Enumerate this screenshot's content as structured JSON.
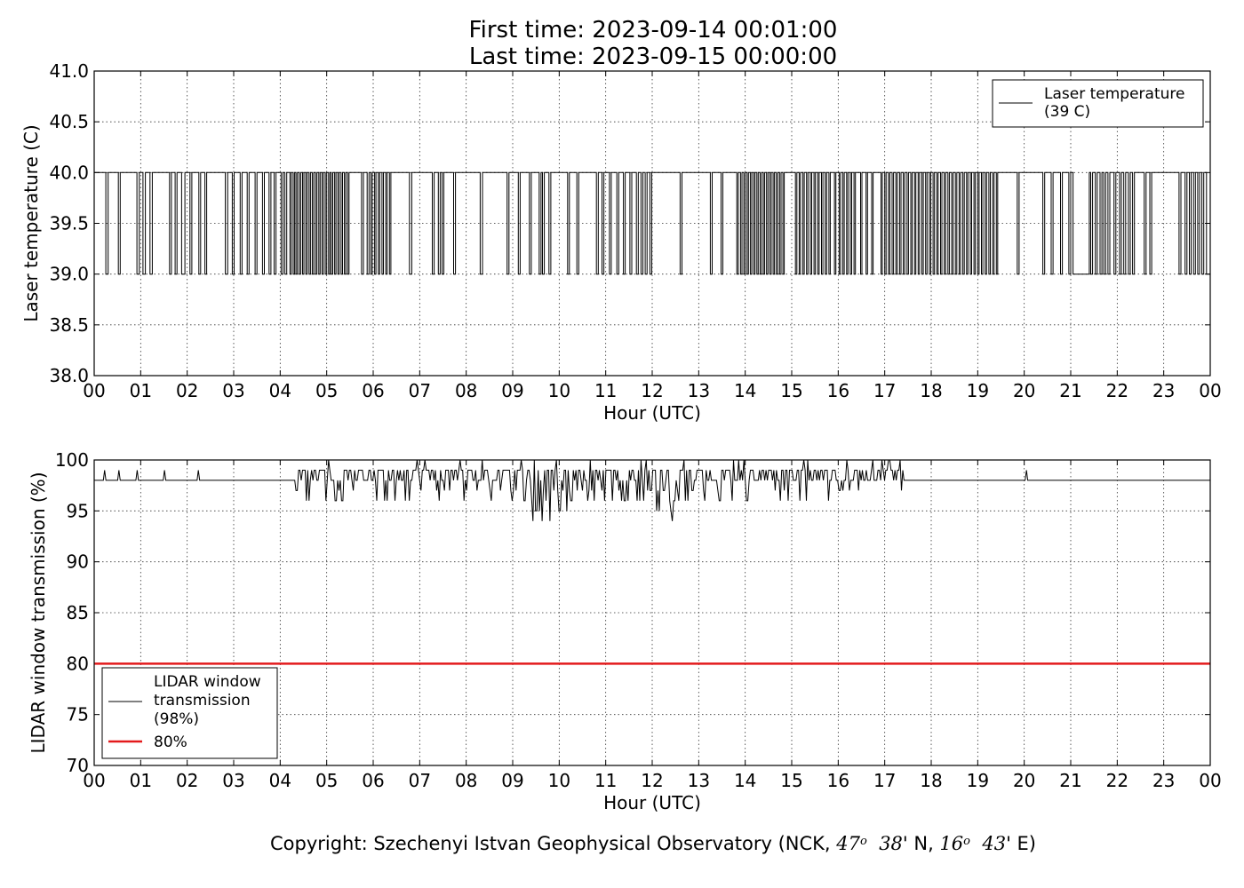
{
  "figure": {
    "title_line_1": "First time: 2023-09-14 00:01:00",
    "title_line_2": "Last time: 2023-09-15 00:00:00",
    "copyright": {
      "prefix": "Copyright: Szechenyi Istvan Geophysical Observatory (NCK, ",
      "lat_deg": "47",
      "deg_symbol": "o",
      "lat_min": "38",
      "lat_suffix": "' N, ",
      "lon_deg": "16",
      "lon_min": "43",
      "lon_suffix": "' E)"
    }
  },
  "chart_data": [
    {
      "type": "line",
      "ylabel": "Laser temperature (C)",
      "xlabel": "Hour (UTC)",
      "xlim": [
        0,
        24
      ],
      "ylim": [
        38.0,
        41.0
      ],
      "x_tick_labels": [
        "00",
        "01",
        "02",
        "03",
        "04",
        "05",
        "06",
        "07",
        "08",
        "09",
        "10",
        "11",
        "12",
        "13",
        "14",
        "15",
        "16",
        "17",
        "18",
        "19",
        "20",
        "21",
        "22",
        "23",
        "00"
      ],
      "y_tick_labels": [
        "38.0",
        "38.5",
        "39.0",
        "39.5",
        "40.0",
        "40.5",
        "41.0"
      ],
      "y_ticks": [
        38.0,
        38.5,
        39.0,
        39.5,
        40.0,
        40.5,
        41.0
      ],
      "grid": true,
      "legend_position": "top-right",
      "series": [
        {
          "name": "Laser temperature\n(39 C)",
          "legend_lines": [
            "Laser temperature",
            "(39 C)"
          ],
          "color": "#000000",
          "baseline": 40.0,
          "low": 39.0,
          "drop_intervals_hours": [
            [
              0.25,
              0.3
            ],
            [
              0.52,
              0.56
            ],
            [
              0.92,
              0.97
            ],
            [
              1.05,
              1.1
            ],
            [
              1.2,
              1.25
            ],
            [
              1.62,
              1.66
            ],
            [
              1.74,
              1.78
            ],
            [
              1.88,
              1.95
            ],
            [
              2.06,
              2.1
            ],
            [
              2.25,
              2.29
            ],
            [
              2.38,
              2.42
            ],
            [
              2.82,
              2.87
            ],
            [
              2.97,
              3.01
            ],
            [
              3.14,
              3.18
            ],
            [
              3.29,
              3.33
            ],
            [
              3.46,
              3.5
            ],
            [
              3.62,
              3.66
            ],
            [
              3.76,
              3.8
            ],
            [
              3.87,
              3.91
            ],
            [
              4.02,
              4.06
            ],
            [
              4.1,
              4.14
            ],
            [
              4.21,
              4.24
            ],
            [
              4.28,
              4.31
            ],
            [
              4.34,
              4.37
            ],
            [
              4.41,
              4.44
            ],
            [
              4.48,
              4.51
            ],
            [
              4.55,
              4.58
            ],
            [
              4.62,
              4.65
            ],
            [
              4.69,
              4.72
            ],
            [
              4.76,
              4.79
            ],
            [
              4.83,
              4.86
            ],
            [
              4.9,
              4.93
            ],
            [
              4.97,
              5.0
            ],
            [
              5.04,
              5.07
            ],
            [
              5.1,
              5.13
            ],
            [
              5.17,
              5.2
            ],
            [
              5.24,
              5.27
            ],
            [
              5.31,
              5.34
            ],
            [
              5.38,
              5.41
            ],
            [
              5.45,
              5.48
            ],
            [
              5.75,
              5.79
            ],
            [
              5.87,
              5.91
            ],
            [
              5.95,
              5.98
            ],
            [
              6.03,
              6.06
            ],
            [
              6.11,
              6.14
            ],
            [
              6.19,
              6.22
            ],
            [
              6.27,
              6.3
            ],
            [
              6.35,
              6.38
            ],
            [
              6.78,
              6.83
            ],
            [
              7.27,
              7.31
            ],
            [
              7.4,
              7.44
            ],
            [
              7.48,
              7.52
            ],
            [
              7.73,
              7.77
            ],
            [
              8.3,
              8.35
            ],
            [
              8.88,
              8.92
            ],
            [
              9.12,
              9.16
            ],
            [
              9.36,
              9.4
            ],
            [
              9.57,
              9.61
            ],
            [
              9.64,
              9.68
            ],
            [
              9.78,
              9.82
            ],
            [
              10.18,
              10.22
            ],
            [
              10.38,
              10.42
            ],
            [
              10.8,
              10.84
            ],
            [
              10.92,
              10.96
            ],
            [
              11.08,
              11.12
            ],
            [
              11.24,
              11.28
            ],
            [
              11.38,
              11.42
            ],
            [
              11.52,
              11.56
            ],
            [
              11.66,
              11.7
            ],
            [
              11.76,
              11.8
            ],
            [
              11.85,
              11.89
            ],
            [
              11.95,
              11.99
            ],
            [
              12.6,
              12.64
            ],
            [
              13.25,
              13.29
            ],
            [
              13.48,
              13.52
            ],
            [
              13.82,
              13.85
            ],
            [
              13.9,
              13.93
            ],
            [
              13.97,
              14.0
            ],
            [
              14.04,
              14.07
            ],
            [
              14.11,
              14.14
            ],
            [
              14.18,
              14.21
            ],
            [
              14.25,
              14.28
            ],
            [
              14.32,
              14.35
            ],
            [
              14.39,
              14.42
            ],
            [
              14.46,
              14.49
            ],
            [
              14.53,
              14.56
            ],
            [
              14.6,
              14.63
            ],
            [
              14.67,
              14.7
            ],
            [
              14.74,
              14.77
            ],
            [
              14.81,
              14.84
            ],
            [
              15.08,
              15.11
            ],
            [
              15.16,
              15.19
            ],
            [
              15.24,
              15.27
            ],
            [
              15.32,
              15.35
            ],
            [
              15.4,
              15.43
            ],
            [
              15.48,
              15.51
            ],
            [
              15.56,
              15.59
            ],
            [
              15.64,
              15.67
            ],
            [
              15.72,
              15.75
            ],
            [
              15.8,
              15.83
            ],
            [
              15.92,
              15.95
            ],
            [
              16.02,
              16.05
            ],
            [
              16.1,
              16.13
            ],
            [
              16.18,
              16.21
            ],
            [
              16.26,
              16.29
            ],
            [
              16.34,
              16.37
            ],
            [
              16.48,
              16.51
            ],
            [
              16.6,
              16.63
            ],
            [
              16.72,
              16.75
            ],
            [
              16.92,
              16.95
            ],
            [
              17.0,
              17.03
            ],
            [
              17.08,
              17.11
            ],
            [
              17.16,
              17.19
            ],
            [
              17.24,
              17.27
            ],
            [
              17.32,
              17.35
            ],
            [
              17.4,
              17.43
            ],
            [
              17.48,
              17.51
            ],
            [
              17.56,
              17.59
            ],
            [
              17.64,
              17.67
            ],
            [
              17.72,
              17.75
            ],
            [
              17.8,
              17.83
            ],
            [
              17.88,
              17.91
            ],
            [
              17.96,
              17.99
            ],
            [
              18.04,
              18.07
            ],
            [
              18.12,
              18.15
            ],
            [
              18.2,
              18.23
            ],
            [
              18.28,
              18.31
            ],
            [
              18.36,
              18.39
            ],
            [
              18.44,
              18.47
            ],
            [
              18.52,
              18.55
            ],
            [
              18.6,
              18.63
            ],
            [
              18.68,
              18.71
            ],
            [
              18.76,
              18.79
            ],
            [
              18.84,
              18.87
            ],
            [
              18.92,
              18.95
            ],
            [
              19.0,
              19.03
            ],
            [
              19.08,
              19.11
            ],
            [
              19.16,
              19.19
            ],
            [
              19.24,
              19.27
            ],
            [
              19.32,
              19.35
            ],
            [
              19.4,
              19.43
            ],
            [
              19.85,
              19.89
            ],
            [
              20.4,
              20.44
            ],
            [
              20.58,
              20.62
            ],
            [
              20.78,
              20.82
            ],
            [
              20.96,
              21.0
            ],
            [
              21.05,
              21.4
            ],
            [
              21.43,
              21.47
            ],
            [
              21.53,
              21.57
            ],
            [
              21.63,
              21.67
            ],
            [
              21.71,
              21.75
            ],
            [
              21.8,
              21.84
            ],
            [
              21.93,
              21.97
            ],
            [
              22.05,
              22.09
            ],
            [
              22.14,
              22.18
            ],
            [
              22.24,
              22.28
            ],
            [
              22.33,
              22.37
            ],
            [
              22.58,
              22.62
            ],
            [
              22.7,
              22.74
            ],
            [
              23.33,
              23.37
            ],
            [
              23.46,
              23.5
            ],
            [
              23.55,
              23.59
            ],
            [
              23.64,
              23.68
            ],
            [
              23.73,
              23.77
            ],
            [
              23.82,
              23.86
            ],
            [
              23.92,
              24.0
            ]
          ]
        }
      ]
    },
    {
      "type": "line",
      "ylabel": "LIDAR window transmission (%)",
      "xlabel": "Hour (UTC)",
      "xlim": [
        0,
        24
      ],
      "ylim": [
        70,
        100
      ],
      "x_tick_labels": [
        "00",
        "01",
        "02",
        "03",
        "04",
        "05",
        "06",
        "07",
        "08",
        "09",
        "10",
        "11",
        "12",
        "13",
        "14",
        "15",
        "16",
        "17",
        "18",
        "19",
        "20",
        "21",
        "22",
        "23",
        "00"
      ],
      "y_tick_labels": [
        "70",
        "75",
        "80",
        "85",
        "90",
        "95",
        "100"
      ],
      "y_ticks": [
        70,
        75,
        80,
        85,
        90,
        95,
        100
      ],
      "grid": true,
      "legend_position": "bottom-left",
      "series": [
        {
          "name": "LIDAR window\ntransmission\n(98%)",
          "legend_lines": [
            "LIDAR window",
            "transmission",
            "(98%)"
          ],
          "color": "#000000",
          "baseline": 98,
          "noisy_segment_hours": [
            4.3,
            17.4
          ],
          "range_in_noisy_segment": [
            94,
            100
          ],
          "spikes": [
            {
              "x": 0.22,
              "y": 99
            },
            {
              "x": 0.53,
              "y": 99
            },
            {
              "x": 0.92,
              "y": 99
            },
            {
              "x": 1.52,
              "y": 99
            },
            {
              "x": 2.25,
              "y": 99
            },
            {
              "x": 20.05,
              "y": 99
            }
          ]
        },
        {
          "name": "80%",
          "legend_lines": [
            "80%"
          ],
          "color": "#e31a1c",
          "constant": 80
        }
      ]
    }
  ]
}
